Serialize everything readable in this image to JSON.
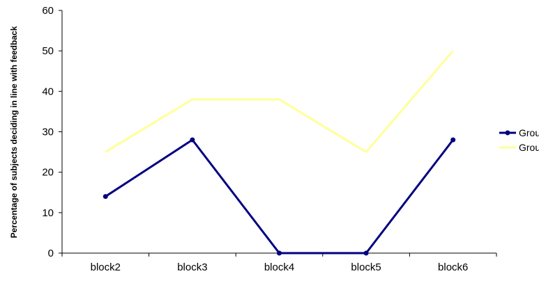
{
  "chart_data": {
    "type": "line",
    "title": "",
    "xlabel": "",
    "ylabel": "Percentage of subjects deciding in line with feedback",
    "categories": [
      "block2",
      "block3",
      "block4",
      "block5",
      "block6"
    ],
    "ylim": [
      0,
      60
    ],
    "yticks": [
      0,
      10,
      20,
      30,
      40,
      50,
      60
    ],
    "grid": false,
    "legend_position": "right",
    "series": [
      {
        "name": "Group A",
        "values": [
          14,
          28,
          0,
          0,
          28
        ],
        "color": "#000080",
        "markers": true
      },
      {
        "name": "Group B",
        "values": [
          25,
          38,
          38,
          25,
          50
        ],
        "color": "#FFFF99",
        "markers": false
      }
    ]
  }
}
